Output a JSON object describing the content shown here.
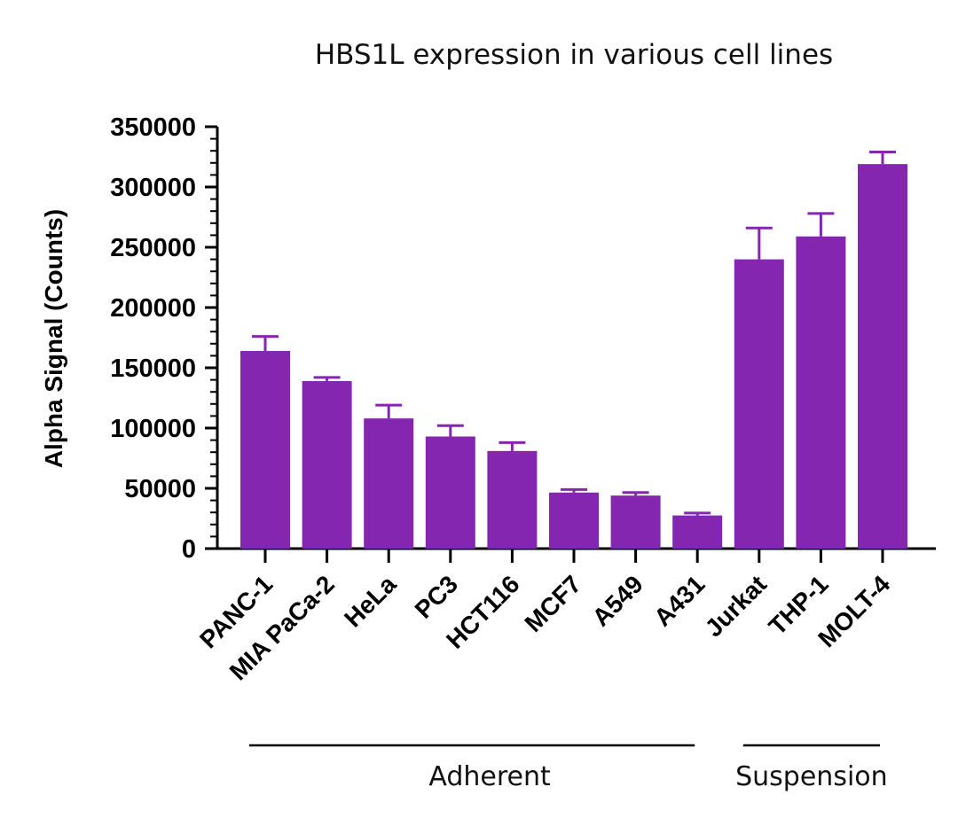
{
  "chart_data": {
    "type": "bar",
    "title": "HBS1L expression in various cell lines",
    "xlabel": "",
    "ylabel": "Alpha Signal (Counts)",
    "ylim": [
      0,
      350000
    ],
    "yticks": [
      "0",
      "50000",
      "100000",
      "150000",
      "200000",
      "250000",
      "300000",
      "350000"
    ],
    "categories": [
      "PANC-1",
      "MIA PaCa-2",
      "HeLa",
      "PC3",
      "HCT116",
      "MCF7",
      "A549",
      "A431",
      "Jurkat",
      "THP-1",
      "MOLT-4"
    ],
    "values": [
      164000,
      139000,
      108000,
      93000,
      81000,
      46500,
      44000,
      27500,
      240000,
      259000,
      319000
    ],
    "errors": [
      12000,
      3000,
      11000,
      9000,
      7000,
      2500,
      2500,
      2000,
      26000,
      19000,
      10000
    ],
    "groups": [
      {
        "label": "Adherent",
        "categories": [
          "PANC-1",
          "MIA PaCa-2",
          "HeLa",
          "PC3",
          "HCT116",
          "MCF7",
          "A549",
          "A431"
        ]
      },
      {
        "label": "Suspension",
        "categories": [
          "Jurkat",
          "THP-1",
          "MOLT-4"
        ]
      }
    ],
    "bar_color": "#8426B0",
    "grid": false,
    "legend": "none"
  }
}
